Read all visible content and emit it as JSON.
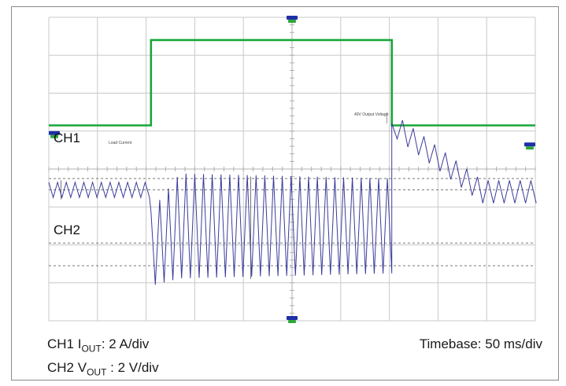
{
  "chart_data": {
    "type": "line",
    "title": "",
    "channels": [
      {
        "name": "CH1",
        "label": "CH1",
        "color": "#18a63a",
        "description": "Load Current"
      },
      {
        "name": "CH2",
        "label": "CH2",
        "color": "#3b3b9c",
        "description": "VOUT"
      }
    ],
    "x_unit": "div",
    "x_range": [
      0,
      10
    ],
    "y_range_div": [
      0,
      8
    ],
    "series": [
      {
        "name": "CH1",
        "x": [
          0,
          2.1,
          2.1,
          7.05,
          7.05,
          10
        ],
        "y": [
          5.15,
          5.15,
          7.4,
          7.4,
          5.15,
          5.15
        ]
      },
      {
        "name": "CH2",
        "segments": [
          {
            "x_range": [
              0,
              2.1
            ],
            "center_div": 3.45,
            "amp_div": 0.2,
            "period_div": 0.18
          },
          {
            "x_range": [
              2.1,
              7.05
            ],
            "center_div": 2.5,
            "amp_start_div": 1.4,
            "amp_end_div": 1.25,
            "period_div": 0.18
          },
          {
            "x_range": [
              7.05,
              10
            ],
            "start_div": 5.2,
            "end_div": 3.4,
            "ripple_amp_div": 0.3,
            "period_div": 0.22
          }
        ]
      }
    ],
    "annotations": {
      "load_current": "Load Current",
      "output_voltage": "40V Output Voltage"
    }
  },
  "labels": {
    "ch1": "CH1",
    "ch2": "CH2",
    "caption_ch1_prefix": "CH1 I",
    "caption_ch1_sub": "OUT",
    "caption_ch1_value": ": 2 A/div",
    "caption_ch2_prefix": "CH2 V",
    "caption_ch2_sub": "OUT",
    "caption_ch2_value": " : 2 V/div",
    "timebase": "Timebase: 50 ms/div"
  },
  "colors": {
    "ch1": "#18a63a",
    "ch2": "#3b3b9c",
    "grid": "#c8c8c8",
    "marker_blue": "#1f2fa8",
    "marker_green": "#2fa83a"
  }
}
